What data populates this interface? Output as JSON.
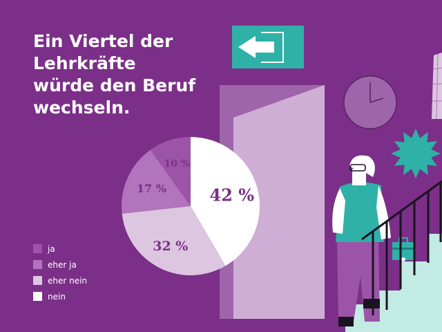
{
  "title_lines": [
    "Ein Viertel der",
    "Lehrkräfte",
    "würde den Beruf",
    "wechseln."
  ],
  "colors": {
    "background": "#7b2f88",
    "ja": "#9c54a8",
    "eher_ja": "#b274bd",
    "eher_nein": "#dcc6e0",
    "nein": "#ffffff",
    "accent_teal": "#2fb1a8",
    "label_text": "#7b2f88"
  },
  "icons": [
    "exit-sign-icon",
    "clock-icon",
    "starburst-icon",
    "person-on-stairs-illustration",
    "door-illustration"
  ],
  "chart_data": {
    "type": "pie",
    "title": "Ein Viertel der Lehrkräfte würde den Beruf wechseln.",
    "unit": "%",
    "slices": [
      {
        "name": "nein",
        "value": 42,
        "label": "42 %",
        "color": "#ffffff"
      },
      {
        "name": "eher nein",
        "value": 32,
        "label": "32 %",
        "color": "#dcc6e0"
      },
      {
        "name": "eher ja",
        "value": 17,
        "label": "17 %",
        "color": "#b274bd"
      },
      {
        "name": "ja",
        "value": 10,
        "label": "10 %",
        "color": "#9c54a8"
      }
    ],
    "legend": {
      "placement": "bottom-left",
      "entries": [
        "ja",
        "eher ja",
        "eher nein",
        "nein"
      ]
    }
  }
}
